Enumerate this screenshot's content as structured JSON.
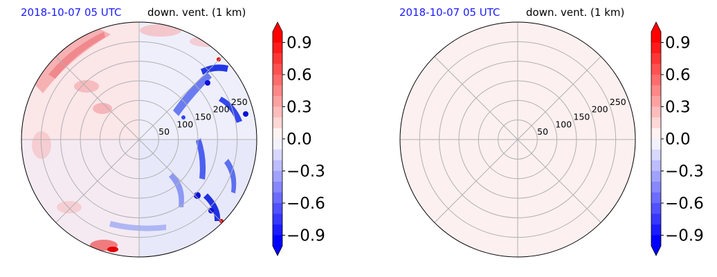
{
  "chart_data": [
    {
      "type": "heatmap",
      "projection": "polar",
      "title_left": "2018-10-07 05 UTC",
      "title_right": "down. vent. (1 km)",
      "radial_ticks": [
        "50",
        "100",
        "150",
        "200",
        "250"
      ],
      "radial_tick_values": [
        50,
        100,
        150,
        200,
        250
      ],
      "radial_max": 300,
      "angular_gridlines_deg": [
        0,
        45,
        90,
        135,
        180,
        225,
        270,
        315
      ],
      "grid": true,
      "field": "variable: blue (negative) toward east/south-east, light red (positive) toward north-west with darker red streaks at north-west edge",
      "colorbar": {
        "ticks": [
          "0.9",
          "0.6",
          "0.3",
          "0.0",
          "−0.3",
          "−0.6",
          "−0.9"
        ],
        "tick_values": [
          0.9,
          0.6,
          0.3,
          0.0,
          -0.3,
          -0.6,
          -0.9
        ],
        "range": [
          -1.0,
          1.0
        ],
        "extend": "both",
        "cmap": "bwr"
      }
    },
    {
      "type": "heatmap",
      "projection": "polar",
      "title_left": "2018-10-07 05 UTC",
      "title_right": "down. vent. (1 km)",
      "radial_ticks": [
        "50",
        "100",
        "150",
        "200",
        "250"
      ],
      "radial_tick_values": [
        50,
        100,
        150,
        200,
        250
      ],
      "radial_max": 300,
      "angular_gridlines_deg": [
        0,
        45,
        90,
        135,
        180,
        225,
        270,
        315
      ],
      "grid": true,
      "field": "uniform ~0.05 (very pale pink)",
      "colorbar": {
        "ticks": [
          "0.9",
          "0.6",
          "0.3",
          "0.0",
          "−0.3",
          "−0.6",
          "−0.9"
        ],
        "tick_values": [
          0.9,
          0.6,
          0.3,
          0.0,
          -0.3,
          -0.6,
          -0.9
        ],
        "range": [
          -1.0,
          1.0
        ],
        "extend": "both",
        "cmap": "bwr"
      }
    }
  ],
  "colors": {
    "title_date": "#1a1aff",
    "grid": "#b0b0b0",
    "uniform_fill": "#fdf0f0"
  }
}
